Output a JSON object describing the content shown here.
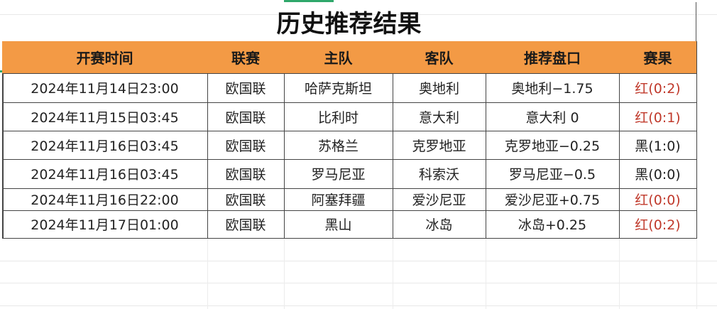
{
  "title": "历史推荐结果",
  "headers": [
    "开赛时间",
    "联赛",
    "主队",
    "客队",
    "推荐盘口",
    "赛果"
  ],
  "rows": [
    [
      "2024年11月14日23:00",
      "欧国联",
      "哈萨克斯坦",
      "奥地利",
      "奥地利−1.75",
      "红(0:2)"
    ],
    [
      "2024年11月15日03:45",
      "欧国联",
      "比利时",
      "意大利",
      "意大利 0",
      "红(0:1)"
    ],
    [
      "2024年11月16日03:45",
      "欧国联",
      "苏格兰",
      "克罗地亚",
      "克罗地亚−0.25",
      "黑(1:0)"
    ],
    [
      "2024年11月16日03:45",
      "欧国联",
      "罗马尼亚",
      "科索沃",
      "罗马尼亚−0.5",
      "黑(0:0)"
    ],
    [
      "2024年11月16日22:00",
      "欧国联",
      "阿塞拜疆",
      "爱沙尼亚",
      "爱沙尼亚+0.75",
      "红(0:0)"
    ],
    [
      "2024年11月17日01:00",
      "欧国联",
      "黑山",
      "冰岛",
      "冰岛+0.25",
      "红(0:2)"
    ]
  ],
  "colors": {
    "header_bg": "#f39a45",
    "red_result": "#c0392b",
    "black_result": "#222222"
  }
}
